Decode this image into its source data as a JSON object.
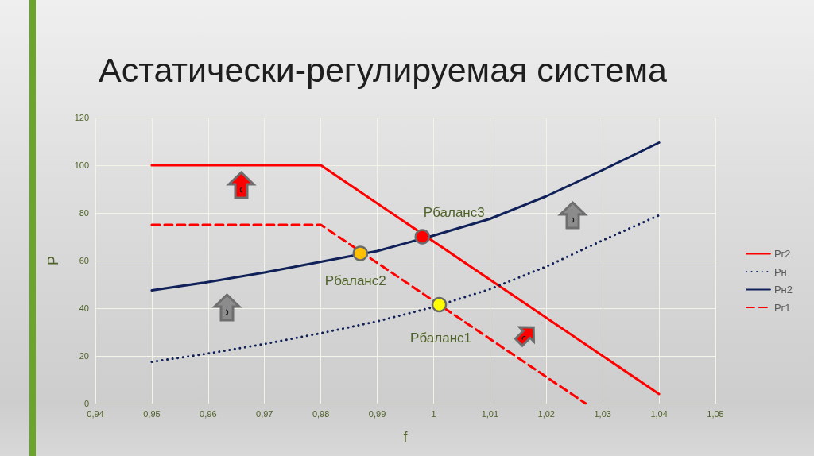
{
  "chart_data": {
    "type": "line",
    "title": "Астатически-регулируемая система",
    "xlabel": "f",
    "ylabel": "P",
    "xlim": [
      0.94,
      1.05
    ],
    "xticks": [
      {
        "value": 0.94,
        "label": "0,94"
      },
      {
        "value": 0.95,
        "label": "0,95"
      },
      {
        "value": 0.96,
        "label": "0,96"
      },
      {
        "value": 0.97,
        "label": "0,97"
      },
      {
        "value": 0.98,
        "label": "0,98"
      },
      {
        "value": 0.99,
        "label": "0,99"
      },
      1,
      {
        "value": 1.01,
        "label": "1,01"
      },
      {
        "value": 1.02,
        "label": "1,02"
      },
      {
        "value": 1.03,
        "label": "1,03"
      },
      {
        "value": 1.04,
        "label": "1,04"
      },
      {
        "value": 1.05,
        "label": "1,05"
      }
    ],
    "ylim": [
      0,
      120
    ],
    "yticks": [
      0,
      20,
      40,
      60,
      80,
      100,
      120
    ],
    "grid": true,
    "legend": "right",
    "series": [
      {
        "name": "Рг2",
        "color": "#ff0000",
        "line_style": "solid",
        "x": [
          0.95,
          0.98,
          1.04
        ],
        "values": [
          100,
          100,
          4
        ]
      },
      {
        "name": "Рн",
        "color": "#10215a",
        "line_style": "dotted",
        "x": [
          0.95,
          0.96,
          0.97,
          0.98,
          0.99,
          1.0,
          1.01,
          1.02,
          1.03,
          1.04
        ],
        "values": [
          17.5,
          21,
          25,
          29.5,
          34.5,
          40.5,
          48,
          57.5,
          68.5,
          79
        ]
      },
      {
        "name": "Рн2",
        "color": "#10215a",
        "line_style": "solid",
        "x": [
          0.95,
          0.96,
          0.97,
          0.98,
          0.99,
          1.0,
          1.01,
          1.02,
          1.03,
          1.04
        ],
        "values": [
          47.5,
          51,
          55,
          59.5,
          64,
          70.5,
          77.5,
          87,
          98,
          109.5
        ]
      },
      {
        "name": "Рг1",
        "color": "#ff0000",
        "line_style": "dashed",
        "x": [
          0.95,
          0.98,
          1.027
        ],
        "values": [
          75,
          75,
          0
        ]
      },
      {
        "type": "scatter",
        "marker": "circle",
        "x": [
          0.998,
          0.987,
          1.001
        ],
        "values": [
          70,
          63,
          41.5
        ],
        "colors": [
          "#ff0000",
          "#ffc000",
          "#ffff00"
        ]
      }
    ],
    "annotations": [
      {
        "text": "Рбаланс3",
        "x": 0.998,
        "y": 70
      },
      {
        "text": "Рбаланс2",
        "x": 0.987,
        "y": 63
      },
      {
        "text": "Рбаланс1",
        "x": 1.001,
        "y": 41.5
      }
    ]
  }
}
